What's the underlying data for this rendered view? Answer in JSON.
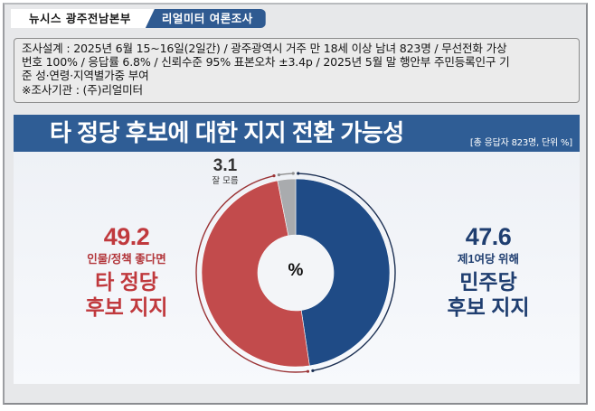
{
  "header": {
    "tab_publisher": "뉴시스  광주전남본부",
    "tab_pollster": "리얼미터  여론조사"
  },
  "survey_info": {
    "lines": [
      "조사설계 : 2025년 6월 15~16일(2일간) / 광주광역시 거주 만 18세 이상 남녀 823명 / 무선전화 가상",
      "번호 100% / 응답률 6.8% / 신뢰수준 95% 표본오차 ±3.4p / 2025년 5월 말 행안부 주민등록인구 기",
      "준 성·연령·지역별가중 부여",
      "※조사기관 : (주)리얼미터"
    ]
  },
  "title_bar": {
    "title": "타 정당 후보에 대한 지지 전환 가능성",
    "subtitle": "[총 응답자 823명, 단위 %]"
  },
  "colors": {
    "democratic_blue": "#1f4b86",
    "other_party_red": "#c24b4c",
    "unknown_gray": "#a9abae",
    "title_bar_blue": "#2f5d95"
  },
  "chart_data": {
    "type": "pie",
    "variant": "donut",
    "title": "타 정당 후보에 대한 지지 전환 가능성",
    "subtitle": "[총 응답자 823명, 단위 %]",
    "center_label": "%",
    "categories": [
      "민주당 후보 지지",
      "타 정당 후보 지지",
      "잘 모름"
    ],
    "values": [
      47.6,
      49.2,
      3.1
    ],
    "descriptions": [
      "제1여당 위해",
      "인물/정책 좋다면",
      ""
    ],
    "colors": [
      "#1f4b86",
      "#c24b4c",
      "#a9abae"
    ],
    "unit": "%",
    "total_respondents": 823
  },
  "labels": {
    "left": {
      "value": "49.2",
      "desc": "인물/정책 좋다면",
      "line1": "타 정당",
      "line2": "후보 지지"
    },
    "right": {
      "value": "47.6",
      "desc": "제1여당 위해",
      "line1": "민주당",
      "line2": "후보 지지"
    },
    "unknown": {
      "value": "3.1",
      "desc": "잘 모름"
    },
    "center": "%"
  }
}
